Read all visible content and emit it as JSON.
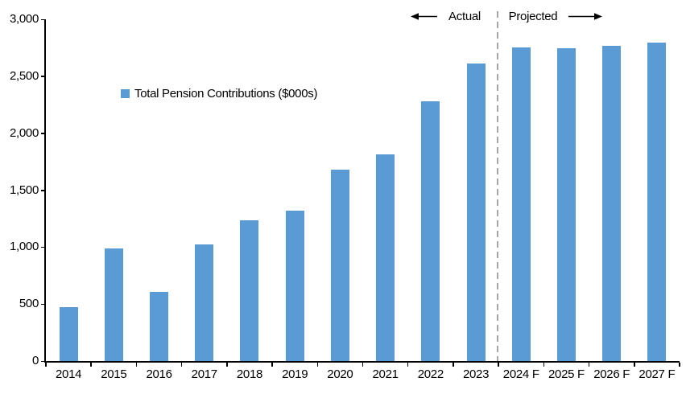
{
  "chart_data": {
    "type": "bar",
    "title": "",
    "legend_label": "Total Pension Contributions ($000s)",
    "legend_position": "inside-upper-left",
    "categories": [
      "2014",
      "2015",
      "2016",
      "2017",
      "2018",
      "2019",
      "2020",
      "2021",
      "2022",
      "2023",
      "2024 F",
      "2025 F",
      "2026 F",
      "2027 F"
    ],
    "values": [
      470,
      990,
      610,
      1025,
      1235,
      1320,
      1680,
      1815,
      2280,
      2610,
      2750,
      2745,
      2765,
      2795
    ],
    "xlabel": "",
    "ylabel": "",
    "ylim": [
      0,
      3000
    ],
    "ytick_interval": 500,
    "ytick_labels": [
      "0",
      "500",
      "1,000",
      "1,500",
      "2,000",
      "2,500",
      "3,000"
    ],
    "grid": "off",
    "annotations": {
      "actual_label": "Actual",
      "projected_label": "Projected",
      "divider_between": [
        "2023",
        "2024 F"
      ]
    },
    "colors": {
      "bar": "#5B9BD5",
      "divider": "#A6A6A6",
      "axis": "#000000",
      "text": "#000000",
      "background": "#FFFFFF"
    }
  }
}
